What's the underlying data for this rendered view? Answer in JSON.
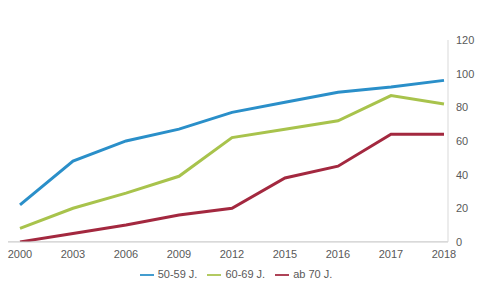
{
  "chart_data": {
    "type": "line",
    "categories": [
      "2000",
      "2003",
      "2006",
      "2009",
      "2012",
      "2015",
      "2016",
      "2017",
      "2018"
    ],
    "series": [
      {
        "name": "50-59 J.",
        "color": "#2a8fc9",
        "values": [
          22,
          48,
          60,
          67,
          77,
          83,
          89,
          92,
          96
        ]
      },
      {
        "name": "60-69 J.",
        "color": "#a8c34c",
        "values": [
          8,
          20,
          29,
          39,
          62,
          67,
          72,
          87,
          82
        ]
      },
      {
        "name": "ab 70 J.",
        "color": "#a3283f",
        "values": [
          0,
          5,
          10,
          16,
          20,
          38,
          45,
          64,
          64
        ]
      }
    ],
    "ylim": [
      0,
      120
    ],
    "yticks": [
      0,
      20,
      40,
      60,
      80,
      100,
      120
    ],
    "grid": false,
    "legend": "bottom"
  }
}
